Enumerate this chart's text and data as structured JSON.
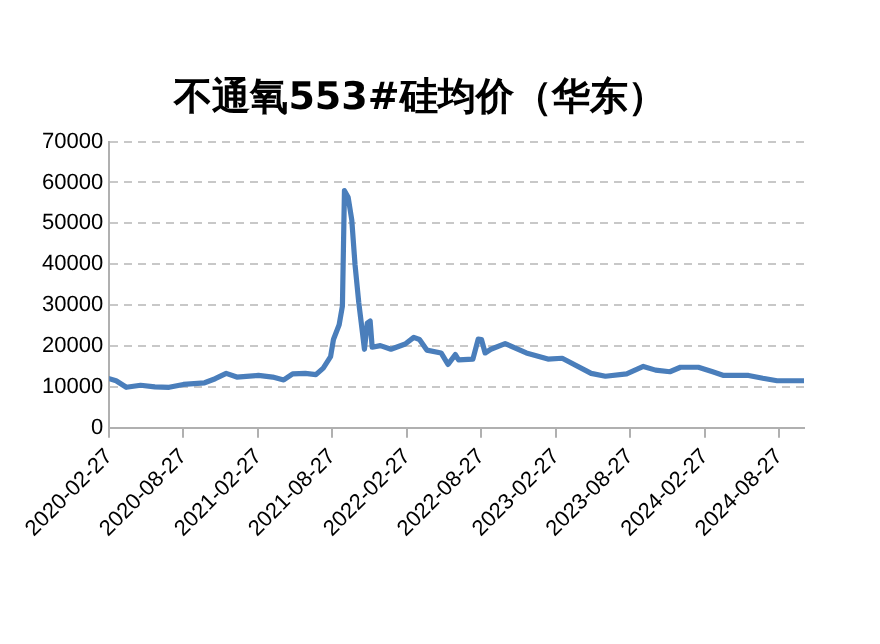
{
  "chart_data": {
    "type": "line",
    "title": "不通氧553#硅均价（华东）",
    "x": [
      "2020-02-27",
      "2020-03-15",
      "2020-04-09",
      "2020-05-14",
      "2020-06-18",
      "2020-07-23",
      "2020-08-27",
      "2020-10-18",
      "2020-11-13",
      "2020-12-10",
      "2021-01-05",
      "2021-02-27",
      "2021-04-03",
      "2021-04-30",
      "2021-05-22",
      "2021-06-22",
      "2021-07-18",
      "2021-08-05",
      "2021-08-23",
      "2021-08-30",
      "2021-09-13",
      "2021-09-21",
      "2021-09-26",
      "2021-10-05",
      "2021-10-14",
      "2021-10-22",
      "2021-10-31",
      "2021-11-09",
      "2021-11-14",
      "2021-11-21",
      "2021-11-28",
      "2021-12-03",
      "2021-12-23",
      "2022-01-18",
      "2022-02-22",
      "2022-03-15",
      "2022-03-29",
      "2022-04-16",
      "2022-05-21",
      "2022-06-07",
      "2022-06-25",
      "2022-07-03",
      "2022-08-07",
      "2022-08-20",
      "2022-08-28",
      "2022-09-06",
      "2022-09-20",
      "2022-10-25",
      "2022-12-16",
      "2023-02-07",
      "2023-03-14",
      "2023-05-24",
      "2023-06-28",
      "2023-08-19",
      "2023-09-29",
      "2023-10-29",
      "2023-12-03",
      "2023-12-29",
      "2024-02-11",
      "2024-03-17",
      "2024-04-13",
      "2024-06-13",
      "2024-07-18",
      "2024-08-22",
      "2024-10-27"
    ],
    "series": [
      {
        "color": "#4a7ebb",
        "values": [
          12000,
          11500,
          9900,
          10400,
          10000,
          9900,
          10600,
          11000,
          12000,
          13300,
          12400,
          12800,
          12400,
          11700,
          13200,
          13300,
          13000,
          14600,
          17400,
          21600,
          25200,
          29800,
          58000,
          56400,
          50800,
          39800,
          30700,
          23400,
          19200,
          25600,
          26100,
          19700,
          20100,
          19200,
          20500,
          22100,
          21600,
          19000,
          18300,
          15500,
          17900,
          16600,
          16800,
          21700,
          21600,
          18300,
          19200,
          20600,
          18300,
          16800,
          17000,
          13300,
          12600,
          13200,
          15000,
          14100,
          13700,
          14800,
          14800,
          13700,
          12800,
          12800,
          12100,
          11500,
          11500
        ]
      }
    ],
    "xlim": [
      "2020-02-27",
      "2024-10-27"
    ],
    "xticks": [
      "2020-02-27",
      "2020-08-27",
      "2021-02-27",
      "2021-08-27",
      "2022-02-27",
      "2022-08-27",
      "2023-02-27",
      "2023-08-27",
      "2024-02-27",
      "2024-08-27"
    ],
    "ylim": [
      0,
      70000
    ],
    "yticks": [
      0,
      10000,
      20000,
      30000,
      40000,
      50000,
      60000,
      70000
    ],
    "grid": "y",
    "legend": false,
    "marker": "none",
    "line_style": "solid"
  }
}
